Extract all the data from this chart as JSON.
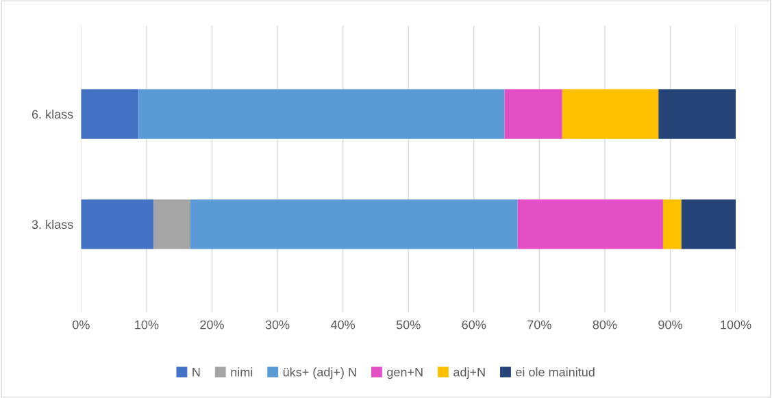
{
  "chart_data": {
    "type": "bar",
    "orientation": "horizontal",
    "stacked": true,
    "categories": [
      "6. klass",
      "3. klass"
    ],
    "series": [
      {
        "name": "N",
        "color": "#4472c4",
        "values": [
          8.8,
          11.1
        ]
      },
      {
        "name": "nimi",
        "color": "#a5a5a5",
        "values": [
          0,
          5.6
        ]
      },
      {
        "name": "üks+ (adj+) N",
        "color": "#5b9bd5",
        "values": [
          55.9,
          50.0
        ]
      },
      {
        "name": "gen+N",
        "color": "#e34fc4",
        "values": [
          8.8,
          22.2
        ]
      },
      {
        "name": "adj+N",
        "color": "#ffc000",
        "values": [
          14.7,
          2.8
        ]
      },
      {
        "name": "ei ole mainitud",
        "color": "#264478",
        "values": [
          11.8,
          8.3
        ]
      }
    ],
    "xlim": [
      0,
      100
    ],
    "xticks": [
      {
        "value": 0,
        "label": "0%"
      },
      {
        "value": 10,
        "label": "10%"
      },
      {
        "value": 20,
        "label": "20%"
      },
      {
        "value": 30,
        "label": "30%"
      },
      {
        "value": 40,
        "label": "40%"
      },
      {
        "value": 50,
        "label": "50%"
      },
      {
        "value": 60,
        "label": "60%"
      },
      {
        "value": 70,
        "label": "70%"
      },
      {
        "value": 80,
        "label": "80%"
      },
      {
        "value": 90,
        "label": "90%"
      },
      {
        "value": 100,
        "label": "100%"
      }
    ],
    "grid": "x",
    "legend": "bottom"
  }
}
